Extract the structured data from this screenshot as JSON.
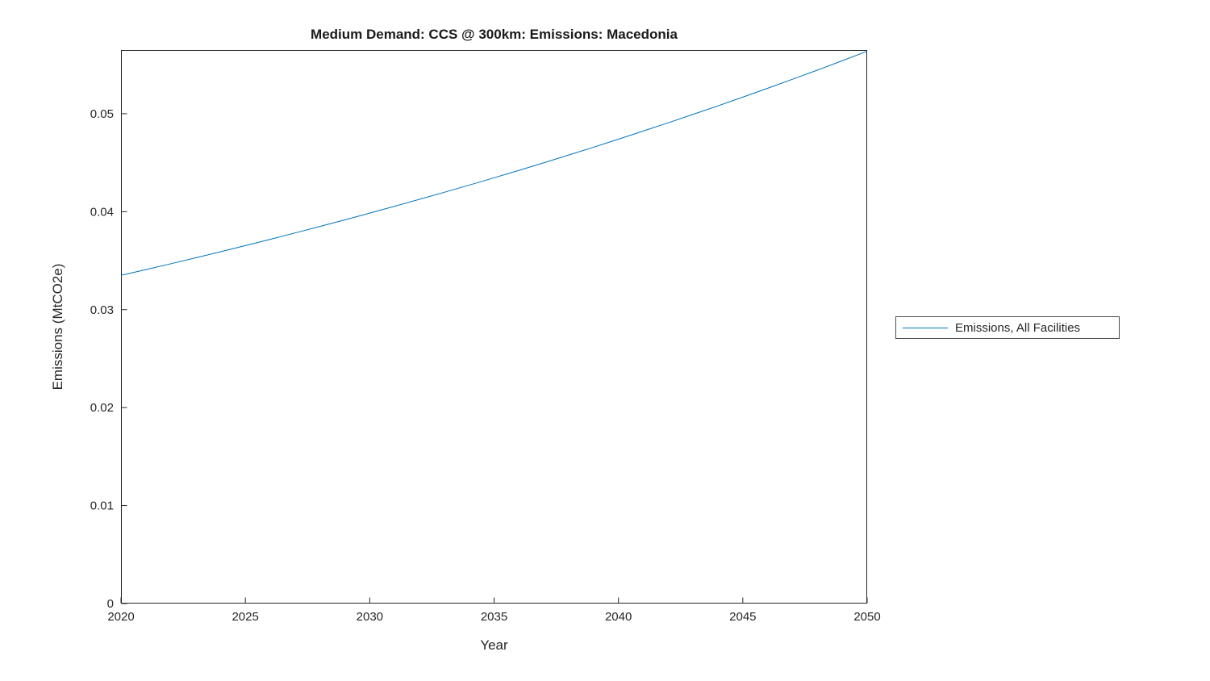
{
  "chart_data": {
    "type": "line",
    "title": "Medium Demand: CCS @ 300km: Emissions: Macedonia",
    "xlabel": "Year",
    "ylabel": "Emissions (MtCO2e)",
    "xlim": [
      2020,
      2050
    ],
    "ylim": [
      0,
      0.0565
    ],
    "xticks": [
      2020,
      2025,
      2030,
      2035,
      2040,
      2045,
      2050
    ],
    "xtick_labels": [
      "2020",
      "2025",
      "2030",
      "2035",
      "2040",
      "2045",
      "2050"
    ],
    "yticks": [
      0,
      0.01,
      0.02,
      0.03,
      0.04,
      0.05
    ],
    "ytick_labels": [
      "0",
      "0.01",
      "0.02",
      "0.03",
      "0.04",
      "0.05"
    ],
    "grid": false,
    "axis_color": "#262626",
    "legend": {
      "position": "right-outside",
      "entries": [
        "Emissions, All Facilities"
      ]
    },
    "series": [
      {
        "name": "Emissions, All Facilities",
        "color": "#0072BD",
        "x": [
          2020,
          2021,
          2022,
          2023,
          2024,
          2025,
          2026,
          2027,
          2028,
          2029,
          2030,
          2031,
          2032,
          2033,
          2034,
          2035,
          2036,
          2037,
          2038,
          2039,
          2040,
          2041,
          2042,
          2043,
          2044,
          2045,
          2046,
          2047,
          2048,
          2049,
          2050
        ],
        "y": [
          0.0335,
          0.03409,
          0.03468,
          0.03529,
          0.03591,
          0.03654,
          0.03718,
          0.03783,
          0.03849,
          0.03916,
          0.03985,
          0.04055,
          0.04126,
          0.04198,
          0.04271,
          0.04346,
          0.04422,
          0.04499,
          0.04578,
          0.04658,
          0.0474,
          0.04823,
          0.04907,
          0.04993,
          0.0508,
          0.05169,
          0.0526,
          0.05352,
          0.05445,
          0.05541,
          0.05638
        ]
      }
    ]
  }
}
